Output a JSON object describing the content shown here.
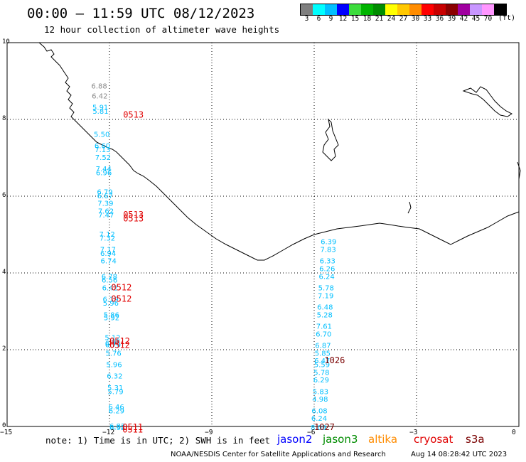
{
  "title": "00:00 – 11:59 UTC 08/12/2023",
  "subtitle": "12 hour collection of altimeter wave heights",
  "colorbar": {
    "colors": [
      "#7f7f7f",
      "#00ffff",
      "#00bfff",
      "#0000ff",
      "#3cdc3c",
      "#00b400",
      "#008c00",
      "#ffff00",
      "#ffc800",
      "#ff8c00",
      "#ff0000",
      "#c80000",
      "#8b0000",
      "#a000a0",
      "#c896ff",
      "#ff96ff",
      "#000000"
    ],
    "labels": [
      "3",
      "6",
      "9",
      "12",
      "15",
      "18",
      "21",
      "24",
      "27",
      "30",
      "33",
      "36",
      "39",
      "42",
      "45",
      "70"
    ],
    "unit": "(ft)"
  },
  "axes": {
    "y_labels": [
      "10",
      "8",
      "6",
      "4",
      "2",
      "0"
    ],
    "x_labels": [
      "−15",
      "−12",
      "−9",
      "−6",
      "−3",
      "0"
    ]
  },
  "track_west": [
    {
      "h": "6.88",
      "c": "#8a8a8a",
      "lat": 8.88
    },
    {
      "h": "6.42",
      "c": "#8a8a8a",
      "lat": 8.62
    },
    {
      "h": "5.91",
      "c": "#00bfff",
      "lat": 8.32
    },
    {
      "h": "5.81",
      "c": "#00bfff",
      "lat": 8.22
    },
    {
      "h": "5.50",
      "c": "#00bfff",
      "lat": 7.62
    },
    {
      "h": "6.60",
      "c": "#00bfff",
      "lat": 7.32
    },
    {
      "h": "7.13",
      "c": "#00bfff",
      "lat": 7.22
    },
    {
      "h": "7.52",
      "c": "#00bfff",
      "lat": 7.02
    },
    {
      "h": "7.44",
      "c": "#00bfff",
      "lat": 6.72
    },
    {
      "h": "6.96",
      "c": "#00bfff",
      "lat": 6.62
    },
    {
      "h": "6.79",
      "c": "#00bfff",
      "lat": 6.12
    },
    {
      "h": "6.67",
      "c": "#00bfff",
      "lat": 6.02
    },
    {
      "h": "7.39",
      "c": "#00bfff",
      "lat": 5.82
    },
    {
      "h": "7.62",
      "c": "#00bfff",
      "lat": 5.62
    },
    {
      "h": "7.47",
      "c": "#00bfff",
      "lat": 5.52
    },
    {
      "h": "7.12",
      "c": "#00bfff",
      "lat": 5.02
    },
    {
      "h": "7.32",
      "c": "#00bfff",
      "lat": 4.92
    },
    {
      "h": "7.17",
      "c": "#00bfff",
      "lat": 4.62
    },
    {
      "h": "6.94",
      "c": "#00bfff",
      "lat": 4.52
    },
    {
      "h": "6.74",
      "c": "#00bfff",
      "lat": 4.32
    },
    {
      "h": "6.78",
      "c": "#00bfff",
      "lat": 3.92
    },
    {
      "h": "6.56",
      "c": "#00bfff",
      "lat": 3.82
    },
    {
      "h": "6.42",
      "c": "#00bfff",
      "lat": 3.62
    },
    {
      "h": "6.19",
      "c": "#00bfff",
      "lat": 3.32
    },
    {
      "h": "5.96",
      "c": "#00bfff",
      "lat": 3.22
    },
    {
      "h": "5.86",
      "c": "#00bfff",
      "lat": 2.92
    },
    {
      "h": "5.92",
      "c": "#00bfff",
      "lat": 2.84
    },
    {
      "h": "5.12",
      "c": "#00bfff",
      "lat": 2.32
    },
    {
      "h": "6.75",
      "c": "#00bfff",
      "lat": 2.18
    },
    {
      "h": "6.79",
      "c": "#00bfff",
      "lat": 2.14
    },
    {
      "h": "5.76",
      "c": "#00bfff",
      "lat": 1.92
    },
    {
      "h": "5.96",
      "c": "#00bfff",
      "lat": 1.62
    },
    {
      "h": "6.32",
      "c": "#00bfff",
      "lat": 1.32
    },
    {
      "h": "5.31",
      "c": "#00bfff",
      "lat": 1.02
    },
    {
      "h": "5.79",
      "c": "#00bfff",
      "lat": 0.92
    },
    {
      "h": "6.46",
      "c": "#00bfff",
      "lat": 0.52
    },
    {
      "h": "6.29",
      "c": "#00bfff",
      "lat": 0.42
    },
    {
      "h": "6.82",
      "c": "#00bfff",
      "lat": 0.02
    },
    {
      "h": "6.92",
      "c": "#00bfff",
      "lat": -0.02
    }
  ],
  "track_east": [
    {
      "h": "6.39",
      "c": "#00bfff",
      "lat": 4.82
    },
    {
      "h": "7.83",
      "c": "#00bfff",
      "lat": 4.62
    },
    {
      "h": "6.33",
      "c": "#00bfff",
      "lat": 4.32
    },
    {
      "h": "6.26",
      "c": "#00bfff",
      "lat": 4.12
    },
    {
      "h": "6.24",
      "c": "#00bfff",
      "lat": 3.92
    },
    {
      "h": "5.78",
      "c": "#00bfff",
      "lat": 3.62
    },
    {
      "h": "7.19",
      "c": "#00bfff",
      "lat": 3.42
    },
    {
      "h": "6.48",
      "c": "#00bfff",
      "lat": 3.12
    },
    {
      "h": "5.28",
      "c": "#00bfff",
      "lat": 2.92
    },
    {
      "h": "7.61",
      "c": "#00bfff",
      "lat": 2.62
    },
    {
      "h": "6.70",
      "c": "#00bfff",
      "lat": 2.42
    },
    {
      "h": "6.87",
      "c": "#00bfff",
      "lat": 2.12
    },
    {
      "h": "5.85",
      "c": "#00bfff",
      "lat": 1.92
    },
    {
      "h": "6.47",
      "c": "#00bfff",
      "lat": 1.72
    },
    {
      "h": "5.59",
      "c": "#00bfff",
      "lat": 1.62
    },
    {
      "h": "5.78",
      "c": "#00bfff",
      "lat": 1.42
    },
    {
      "h": "6.29",
      "c": "#00bfff",
      "lat": 1.22
    },
    {
      "h": "5.83",
      "c": "#00bfff",
      "lat": 0.92
    },
    {
      "h": "4.98",
      "c": "#00bfff",
      "lat": 0.72
    },
    {
      "h": "6.08",
      "c": "#00bfff",
      "lat": 0.42
    },
    {
      "h": "6.24",
      "c": "#00bfff",
      "lat": 0.22
    },
    {
      "h": "8.09",
      "c": "#00bfff",
      "lat": -0.02
    }
  ],
  "times": [
    {
      "t": "0513",
      "c": "#e00000",
      "lat": 8.12,
      "lon": -11.6
    },
    {
      "t": "0513",
      "c": "#e00000",
      "lat": 5.52,
      "lon": -11.6
    },
    {
      "t": "0513",
      "c": "#e00000",
      "lat": 5.42,
      "lon": -11.6
    },
    {
      "t": "0512",
      "c": "#e00000",
      "lat": 3.62,
      "lon": -11.95
    },
    {
      "t": "0512",
      "c": "#e00000",
      "lat": 3.32,
      "lon": -11.95
    },
    {
      "t": "0512",
      "c": "#e00000",
      "lat": 2.22,
      "lon": -12.0
    },
    {
      "t": "0512",
      "c": "#e00000",
      "lat": 2.12,
      "lon": -12.0
    },
    {
      "t": "0511",
      "c": "#e00000",
      "lat": -0.02,
      "lon": -11.62
    },
    {
      "t": "0511",
      "c": "#e00000",
      "lat": -0.08,
      "lon": -11.62
    },
    {
      "t": "1026",
      "c": "#7a0000",
      "lat": 1.72,
      "lon": -5.7
    },
    {
      "t": "1027",
      "c": "#7a0000",
      "lat": -0.02,
      "lon": -6.0
    }
  ],
  "note": "note: 1) Time is in UTC; 2) SWH is in feet",
  "satellites": [
    {
      "name": "jason2",
      "color": "#0000ff"
    },
    {
      "name": "jason3",
      "color": "#008c00"
    },
    {
      "name": "altika",
      "color": "#ff8c00"
    },
    {
      "name": "cryosat",
      "color": "#e00000"
    },
    {
      "name": "s3a",
      "color": "#7a0000"
    }
  ],
  "credit": "NOAA/NESDIS Center for Satellite Applications and Research",
  "generated": "Aug 14 08:28:42 UTC 2023"
}
